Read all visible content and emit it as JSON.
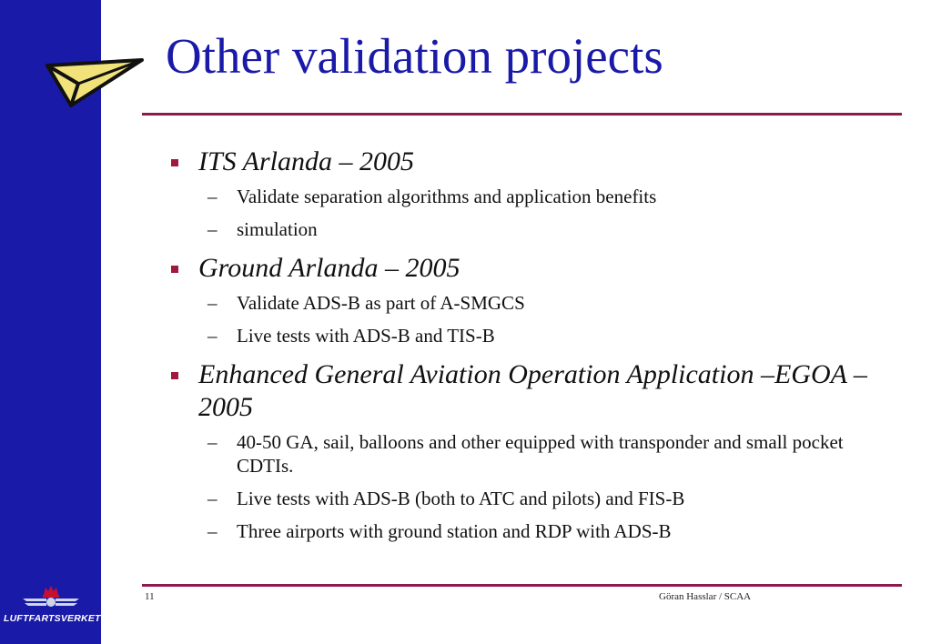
{
  "slide": {
    "title": "Other validation projects",
    "page_number": "11",
    "footer": "Göran Hasslar / SCAA",
    "logo_text": "LUFTFARTSVERKET",
    "accent_color": "#8e1a4c",
    "sidebar_color": "#1a1aa8"
  },
  "items": [
    {
      "heading": "ITS Arlanda – 2005",
      "subs": [
        "Validate separation algorithms and application benefits",
        "simulation"
      ]
    },
    {
      "heading": "Ground Arlanda – 2005",
      "subs": [
        "Validate ADS-B as part of A-SMGCS",
        "Live tests with ADS-B and TIS-B"
      ]
    },
    {
      "heading": "Enhanced General Aviation Operation Application –EGOA –2005",
      "subs": [
        "40-50 GA, sail, balloons and other equipped with transponder and small pocket CDTIs.",
        "Live tests with ADS-B (both to ATC and pilots) and FIS-B",
        "Three airports with ground station and RDP with ADS-B"
      ]
    }
  ]
}
